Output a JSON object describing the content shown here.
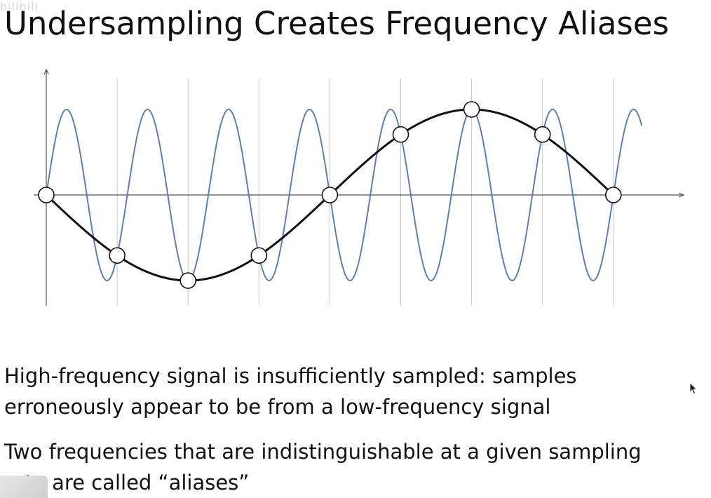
{
  "slide": {
    "title": "Undersampling Creates Frequency Aliases",
    "watermark": "bilibili",
    "paragraphs": [
      {
        "line1": "High-frequency signal is insufficiently sampled: samples",
        "line2": "erroneously appear to be from a low-frequency signal"
      },
      {
        "line1": "Two frequencies that are indistinguishable at a given sampling",
        "line2": "rate are called “aliases”"
      }
    ]
  },
  "chart_data": {
    "type": "line",
    "title": "",
    "xlabel": "",
    "ylabel": "",
    "xlim": [
      0,
      8.4
    ],
    "ylim": [
      -1,
      1
    ],
    "grid": "vertical lines at sample positions",
    "sample_positions": [
      0,
      1,
      2,
      3,
      4,
      5,
      6,
      7,
      8
    ],
    "series": [
      {
        "role": "high-frequency",
        "color": "#5b7fb8",
        "frequency_cycles_per_sample": 0.875,
        "amplitude": 1,
        "function": "sin"
      },
      {
        "role": "low-frequency alias",
        "color": "#111111",
        "frequency_cycles_per_sample": -0.125,
        "amplitude": 1,
        "function": "sin",
        "x_range": [
          0,
          8
        ]
      }
    ],
    "samples": {
      "x": [
        0,
        1,
        2,
        3,
        4,
        5,
        6,
        7,
        8
      ],
      "y": [
        0,
        -0.7071,
        -1,
        -0.7071,
        0,
        0.7071,
        1,
        0.7071,
        0
      ]
    }
  }
}
